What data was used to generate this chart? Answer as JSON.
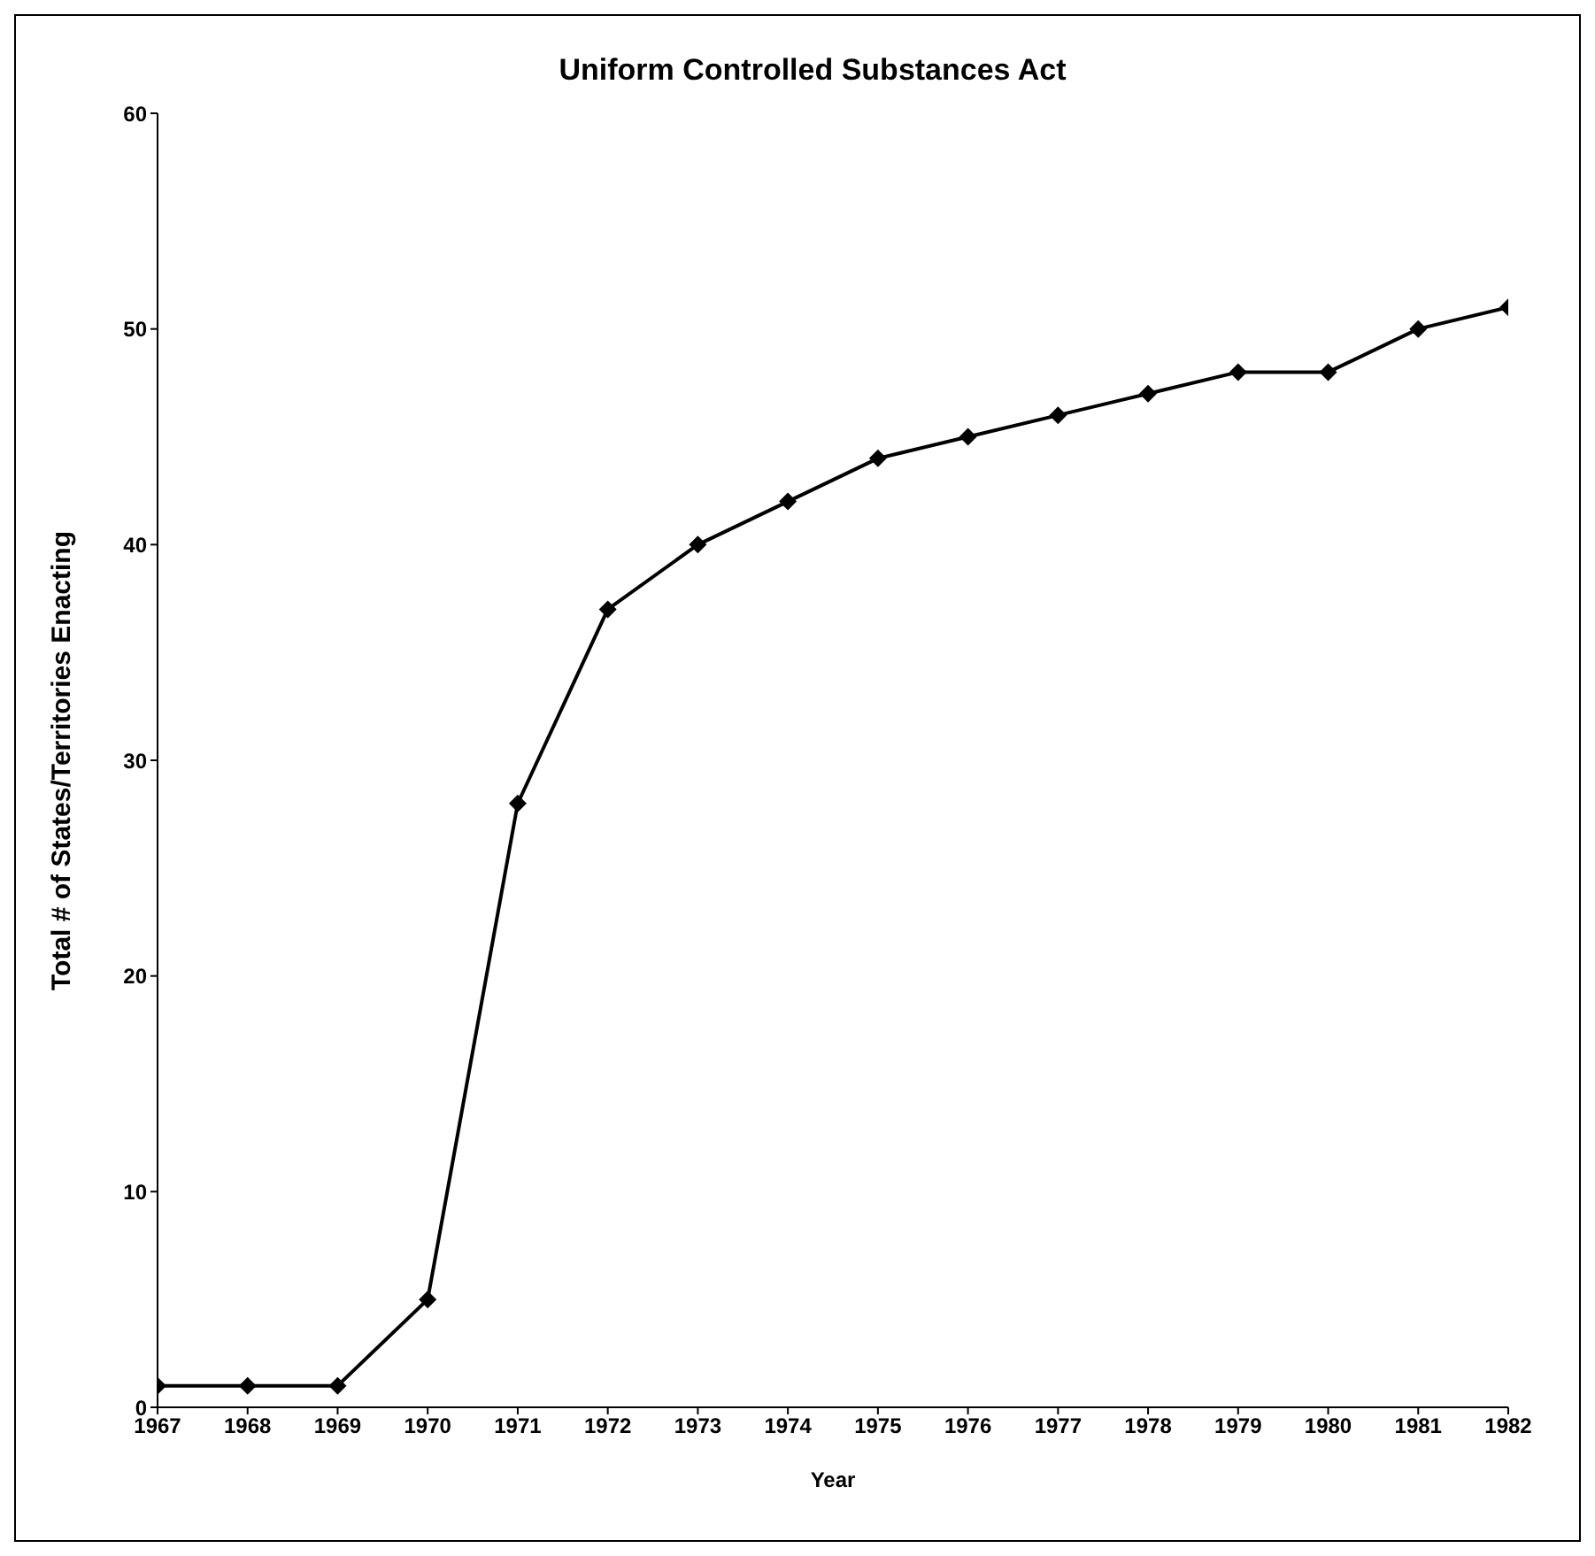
{
  "chart_data": {
    "type": "line",
    "title": "Uniform Controlled Substances Act",
    "xlabel": "Year",
    "ylabel": "Total # of States/Territories Enacting",
    "categories": [
      "1967",
      "1968",
      "1969",
      "1970",
      "1971",
      "1972",
      "1973",
      "1974",
      "1975",
      "1976",
      "1977",
      "1978",
      "1979",
      "1980",
      "1981",
      "1982"
    ],
    "series": [
      {
        "color": "#000000",
        "values": [
          1,
          1,
          1,
          5,
          28,
          37,
          40,
          42,
          44,
          45,
          46,
          47,
          48,
          48,
          50,
          51
        ]
      }
    ],
    "ylim": [
      0,
      60
    ],
    "yticks": [
      0,
      10,
      20,
      30,
      40,
      50,
      60
    ],
    "grid": false,
    "legend": false,
    "marker": "diamond",
    "line_style": "solid"
  }
}
